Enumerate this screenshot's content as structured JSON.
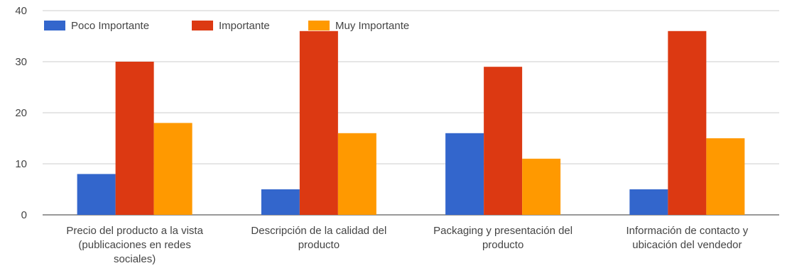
{
  "chart_data": {
    "type": "bar",
    "categories": [
      [
        "Precio del producto a la vista",
        "(publicaciones en redes",
        "sociales)"
      ],
      [
        "Descripción de la calidad del",
        "producto"
      ],
      [
        "Packaging y presentación del",
        "producto"
      ],
      [
        "Información de contacto y",
        "ubicación del vendedor"
      ]
    ],
    "series": [
      {
        "name": "Poco Importante",
        "color": "#3366cc",
        "values": [
          8,
          5,
          16,
          5
        ]
      },
      {
        "name": "Importante",
        "color": "#dc3912",
        "values": [
          30,
          36,
          29,
          36
        ]
      },
      {
        "name": "Muy Importante",
        "color": "#ff9900",
        "values": [
          18,
          16,
          11,
          15
        ]
      }
    ],
    "yticks": [
      "0",
      "10",
      "20",
      "30",
      "40"
    ],
    "ylim": [
      0,
      40
    ],
    "grid": true,
    "legend": "top-left"
  }
}
